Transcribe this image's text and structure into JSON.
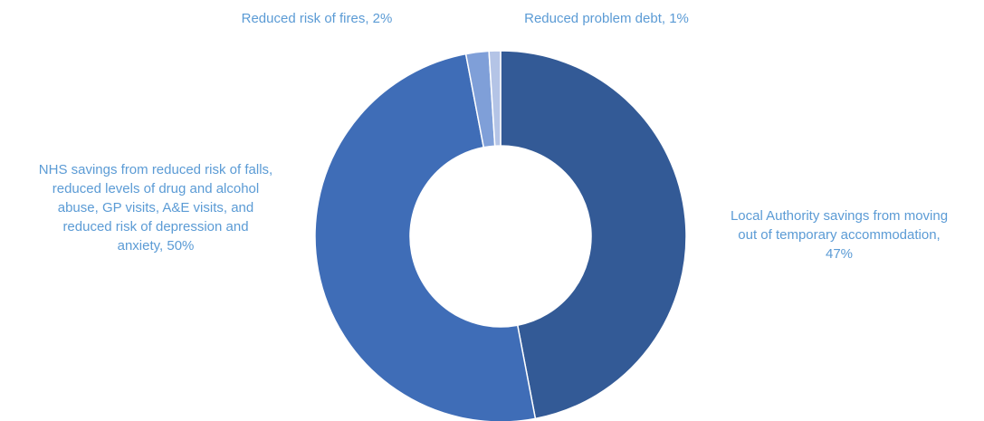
{
  "chart_data": {
    "type": "pie",
    "variant": "doughnut",
    "title": "",
    "legend": "none",
    "slices": [
      {
        "label_lines": [
          "Local Authority savings from moving",
          "out of temporary accommodation,",
          "47%"
        ],
        "value": 47,
        "color": "#335a96"
      },
      {
        "label_lines": [
          "NHS savings from reduced risk of falls,",
          "reduced levels of drug and alcohol",
          "abuse, GP visits, A&E visits, and",
          "reduced risk of depression and",
          "anxiety, 50%"
        ],
        "value": 50,
        "color": "#3f6db7"
      },
      {
        "label_lines": [
          "Reduced risk of fires, 2%"
        ],
        "value": 2,
        "color": "#7f9fd8"
      },
      {
        "label_lines": [
          "Reduced problem debt, 1%"
        ],
        "value": 1,
        "color": "#b4c4e6"
      }
    ]
  }
}
